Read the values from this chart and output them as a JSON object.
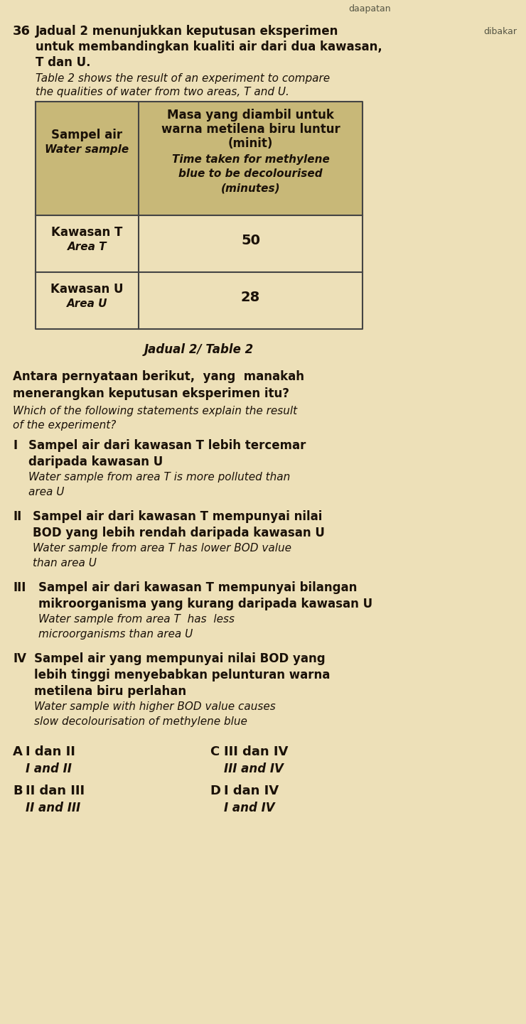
{
  "bg_color": "#ede0b8",
  "page_bg": "#ede0b8",
  "q_number": "36",
  "q_malay_line1": "Jadual 2 menunjukkan keputusan eksperimen",
  "q_malay_line2": "untuk membandingkan kualiti air dari dua kawasan,",
  "q_malay_line3": "T dan U.",
  "q_english_line1": "Table 2 shows the result of an experiment to compare",
  "q_english_line2": "the qualities of water from two areas, T and U.",
  "table_header_col1_malay": "Sampel air",
  "table_header_col1_english": "Water sample",
  "table_header_col2_line1": "Masa yang diambil untuk",
  "table_header_col2_line2": "warna metilena biru luntur",
  "table_header_col2_line3": "(minit)",
  "table_header_col2_eng_line1": "Time taken for methylene",
  "table_header_col2_eng_line2": "blue to be decolourised",
  "table_header_col2_eng_line3": "(minutes)",
  "row1_col1_malay": "Kawasan T",
  "row1_col1_english": "Area T",
  "row1_col2": "50",
  "row2_col1_malay": "Kawasan U",
  "row2_col1_english": "Area U",
  "row2_col2": "28",
  "table_caption": "Jadual 2/ Table 2",
  "question_malay_line1": "Antara pernyataan berikut,  yang  manakah",
  "question_malay_line2": "menerangkan keputusan eksperimen itu?",
  "question_english_line1": "Which of the following statements explain the result",
  "question_english_line2": "of the experiment?",
  "roman_I": "I",
  "roman_I_m1": "Sampel air dari kawasan T lebih tercemar",
  "roman_I_m2": "daripada kawasan U",
  "roman_I_e1": "Water sample from area T is more polluted than",
  "roman_I_e2": "area U",
  "roman_II": "II",
  "roman_II_m1": "Sampel air dari kawasan T mempunyai nilai",
  "roman_II_m2": "BOD yang lebih rendah daripada kawasan U",
  "roman_II_e1": "Water sample from area T has lower BOD value",
  "roman_II_e2": "than area U",
  "roman_III": "III",
  "roman_III_m1": "Sampel air dari kawasan T mempunyai bilangan",
  "roman_III_m2": "mikroorganisma yang kurang daripada kawasan U",
  "roman_III_e1": "Water sample from area T  has  less",
  "roman_III_e2": "microorganisms than area U",
  "roman_IV": "IV",
  "roman_IV_m1": "Sampel air yang mempunyai nilai BOD yang",
  "roman_IV_m2": "lebih tinggi menyebabkan pelunturan warna",
  "roman_IV_m3": "metilena biru perlahan",
  "roman_IV_e1": "Water sample with higher BOD value causes",
  "roman_IV_e2": "slow decolourisation of methylene blue",
  "ans_A": "A",
  "ans_A_m": "I dan II",
  "ans_A_e": "I and II",
  "ans_B": "B",
  "ans_B_m": "II dan III",
  "ans_B_e": "II and III",
  "ans_C": "C",
  "ans_C_m": "III dan IV",
  "ans_C_e": "III and IV",
  "ans_D": "D",
  "ans_D_m": "I dan IV",
  "ans_D_e": "I and IV",
  "top_right_text": "daapatan",
  "side_right_text": "dibakar",
  "text_color": "#1a1108",
  "table_header_bg": "#c8b878",
  "table_border_color": "#444444"
}
